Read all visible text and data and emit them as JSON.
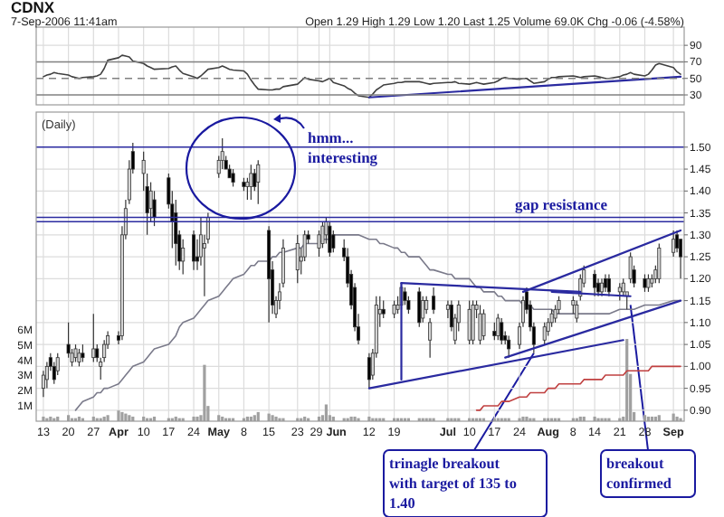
{
  "chart_data": [
    {
      "type": "line",
      "title": "CDNX",
      "subtitle": "7-Sep-2006 11:41am",
      "annotations": [
        "Open 1.29 High 1.29 Low 1.20 Last 1.25 Volume 69.0K Chg -0.06 (-4.58%)"
      ],
      "x": [
        "2006-03-13",
        "2006-03-14",
        "2006-03-15",
        "2006-03-16",
        "2006-03-17",
        "2006-03-20",
        "2006-03-21",
        "2006-03-22",
        "2006-03-23",
        "2006-03-24",
        "2006-03-27",
        "2006-03-28",
        "2006-03-29",
        "2006-03-30",
        "2006-03-31",
        "2006-04-03",
        "2006-04-04",
        "2006-04-05",
        "2006-04-06",
        "2006-04-07",
        "2006-04-10",
        "2006-04-11",
        "2006-04-12",
        "2006-04-13",
        "2006-04-17",
        "2006-04-18",
        "2006-04-19",
        "2006-04-20",
        "2006-04-21",
        "2006-04-24",
        "2006-04-25",
        "2006-04-26",
        "2006-04-27",
        "2006-04-28",
        "2006-05-01",
        "2006-05-02",
        "2006-05-03",
        "2006-05-04",
        "2006-05-05",
        "2006-05-08",
        "2006-05-09",
        "2006-05-10",
        "2006-05-11",
        "2006-05-12",
        "2006-05-15",
        "2006-05-16",
        "2006-05-17",
        "2006-05-18",
        "2006-05-19",
        "2006-05-23",
        "2006-05-24",
        "2006-05-25",
        "2006-05-26",
        "2006-05-29",
        "2006-05-30",
        "2006-05-31",
        "2006-06-01",
        "2006-06-02",
        "2006-06-05",
        "2006-06-06",
        "2006-06-07",
        "2006-06-08",
        "2006-06-09",
        "2006-06-12",
        "2006-06-13",
        "2006-06-14",
        "2006-06-15",
        "2006-06-16",
        "2006-06-19",
        "2006-06-20",
        "2006-06-21",
        "2006-06-22",
        "2006-06-23",
        "2006-06-26",
        "2006-06-27",
        "2006-06-28",
        "2006-06-29",
        "2006-06-30",
        "2006-07-04",
        "2006-07-05",
        "2006-07-06",
        "2006-07-07",
        "2006-07-10",
        "2006-07-11",
        "2006-07-12",
        "2006-07-13",
        "2006-07-14",
        "2006-07-17",
        "2006-07-18",
        "2006-07-19",
        "2006-07-20",
        "2006-07-21",
        "2006-07-24",
        "2006-07-25",
        "2006-07-26",
        "2006-07-27",
        "2006-07-28",
        "2006-07-31",
        "2006-08-01",
        "2006-08-02",
        "2006-08-03",
        "2006-08-04",
        "2006-08-08",
        "2006-08-09",
        "2006-08-10",
        "2006-08-11",
        "2006-08-14",
        "2006-08-15",
        "2006-08-16",
        "2006-08-17",
        "2006-08-18",
        "2006-08-21",
        "2006-08-22",
        "2006-08-23",
        "2006-08-24",
        "2006-08-25",
        "2006-08-28",
        "2006-08-29",
        "2006-08-30",
        "2006-08-31",
        "2006-09-01",
        "2006-09-05",
        "2006-09-06",
        "2006-09-07"
      ],
      "series": [
        {
          "color": "#404040",
          "values": [
            52,
            54,
            55,
            57,
            56,
            54,
            52,
            51,
            50,
            51,
            52,
            53,
            55,
            62,
            72,
            75,
            78,
            77,
            76,
            71,
            68,
            65,
            63,
            61,
            62,
            64,
            65,
            60,
            56,
            52,
            50,
            53,
            57,
            61,
            63,
            65,
            63,
            61,
            60,
            59,
            55,
            48,
            42,
            37,
            36,
            36,
            37,
            37,
            40,
            43,
            47,
            51,
            49,
            47,
            46,
            48,
            50,
            45,
            41,
            38,
            36,
            32,
            29,
            27,
            31,
            36,
            39,
            42,
            44,
            45,
            45,
            46,
            46,
            46,
            45,
            44,
            43,
            44,
            45,
            45,
            46,
            44,
            43,
            44,
            45,
            44,
            43,
            45,
            47,
            50,
            51,
            50,
            49,
            50,
            50,
            47,
            44,
            46,
            49,
            51,
            51,
            52,
            53,
            52,
            51,
            52,
            53,
            52,
            51,
            50,
            50,
            52,
            54,
            55,
            57,
            55,
            53,
            55,
            60,
            66,
            68,
            63,
            58,
            55
          ]
        },
        {
          "color": "#2a2aa0",
          "x": [
            "2006-06-12",
            "2006-09-07"
          ],
          "values": [
            27,
            52
          ]
        }
      ],
      "ylim": [
        18,
        112
      ],
      "yticks": [
        30,
        50,
        70,
        90
      ],
      "grid": true,
      "tick_labels": "y",
      "xlim": [
        "2006-03-11",
        "2006-09-08"
      ],
      "xticks": [
        {
          "value": "2006-03-13",
          "label": null
        },
        {
          "value": "2006-03-20",
          "label": null
        },
        {
          "value": "2006-03-27",
          "label": null
        },
        {
          "value": "2006-04-03",
          "label": null
        },
        {
          "value": "2006-04-10",
          "label": null
        },
        {
          "value": "2006-04-17",
          "label": null
        },
        {
          "value": "2006-04-24",
          "label": null
        },
        {
          "value": "2006-05-01",
          "label": null
        },
        {
          "value": "2006-05-08",
          "label": null
        },
        {
          "value": "2006-05-15",
          "label": null
        },
        {
          "value": "2006-05-23",
          "label": null
        },
        {
          "value": "2006-05-29",
          "label": null
        },
        {
          "value": "2006-06-01",
          "label": null
        },
        {
          "value": "2006-06-12",
          "label": null
        },
        {
          "value": "2006-06-19",
          "label": null
        },
        {
          "value": "2006-07-04",
          "label": null
        },
        {
          "value": "2006-07-10",
          "label": null
        },
        {
          "value": "2006-07-17",
          "label": null
        },
        {
          "value": "2006-07-24",
          "label": null
        },
        {
          "value": "2006-08-01",
          "label": null
        },
        {
          "value": "2006-08-08",
          "label": null
        },
        {
          "value": "2006-08-14",
          "label": null
        },
        {
          "value": "2006-08-21",
          "label": null
        },
        {
          "value": "2006-08-28",
          "label": null
        },
        {
          "value": "2006-09-05",
          "label": null
        }
      ],
      "ref_lines": [
        {
          "axis": "y",
          "value": 70,
          "color": "#808080",
          "line_style": "solid"
        },
        {
          "axis": "y",
          "value": 50,
          "color": "#808080",
          "line_style": "dashed"
        },
        {
          "axis": "y",
          "value": 30,
          "color": "#808080",
          "line_style": "solid"
        }
      ]
    },
    {
      "type": "candlestick",
      "x": [
        "2006-03-13",
        "2006-03-14",
        "2006-03-15",
        "2006-03-16",
        "2006-03-17",
        "2006-03-20",
        "2006-03-21",
        "2006-03-22",
        "2006-03-23",
        "2006-03-24",
        "2006-03-27",
        "2006-03-28",
        "2006-03-29",
        "2006-03-30",
        "2006-03-31",
        "2006-04-03",
        "2006-04-04",
        "2006-04-05",
        "2006-04-06",
        "2006-04-07",
        "2006-04-10",
        "2006-04-11",
        "2006-04-12",
        "2006-04-13",
        "2006-04-17",
        "2006-04-18",
        "2006-04-19",
        "2006-04-20",
        "2006-04-21",
        "2006-04-24",
        "2006-04-25",
        "2006-04-26",
        "2006-04-27",
        "2006-04-28",
        "2006-05-01",
        "2006-05-02",
        "2006-05-03",
        "2006-05-04",
        "2006-05-05",
        "2006-05-08",
        "2006-05-09",
        "2006-05-10",
        "2006-05-11",
        "2006-05-12",
        "2006-05-15",
        "2006-05-16",
        "2006-05-17",
        "2006-05-18",
        "2006-05-19",
        "2006-05-23",
        "2006-05-24",
        "2006-05-25",
        "2006-05-26",
        "2006-05-29",
        "2006-05-30",
        "2006-05-31",
        "2006-06-01",
        "2006-06-02",
        "2006-06-05",
        "2006-06-06",
        "2006-06-07",
        "2006-06-08",
        "2006-06-09",
        "2006-06-12",
        "2006-06-13",
        "2006-06-14",
        "2006-06-15",
        "2006-06-16",
        "2006-06-19",
        "2006-06-20",
        "2006-06-21",
        "2006-06-22",
        "2006-06-23",
        "2006-06-26",
        "2006-06-27",
        "2006-06-28",
        "2006-06-29",
        "2006-06-30",
        "2006-07-04",
        "2006-07-05",
        "2006-07-06",
        "2006-07-07",
        "2006-07-10",
        "2006-07-11",
        "2006-07-12",
        "2006-07-13",
        "2006-07-14",
        "2006-07-17",
        "2006-07-18",
        "2006-07-19",
        "2006-07-20",
        "2006-07-21",
        "2006-07-24",
        "2006-07-25",
        "2006-07-26",
        "2006-07-27",
        "2006-07-28",
        "2006-07-31",
        "2006-08-01",
        "2006-08-02",
        "2006-08-03",
        "2006-08-04",
        "2006-08-08",
        "2006-08-09",
        "2006-08-10",
        "2006-08-11",
        "2006-08-14",
        "2006-08-15",
        "2006-08-16",
        "2006-08-17",
        "2006-08-18",
        "2006-08-21",
        "2006-08-22",
        "2006-08-23",
        "2006-08-24",
        "2006-08-25",
        "2006-08-28",
        "2006-08-29",
        "2006-08-30",
        "2006-08-31",
        "2006-09-01",
        "2006-09-05",
        "2006-09-06",
        "2006-09-07"
      ],
      "ohlc": [
        [
          0.95,
          0.99,
          0.93,
          0.98
        ],
        [
          0.97,
          1.01,
          0.95,
          1.0
        ],
        [
          1.02,
          1.03,
          0.99,
          1.0
        ],
        [
          1.0,
          1.01,
          0.96,
          0.97
        ],
        [
          0.99,
          1.03,
          0.98,
          1.02
        ],
        [
          1.05,
          1.1,
          1.02,
          1.03
        ],
        [
          1.01,
          1.04,
          1.0,
          1.03
        ],
        [
          1.02,
          1.05,
          1.01,
          1.04
        ],
        [
          1.01,
          1.04,
          1.0,
          1.03
        ],
        [
          1.03,
          1.05,
          1.01,
          1.02
        ],
        [
          1.02,
          1.12,
          1.01,
          1.04
        ],
        [
          1.04,
          1.05,
          1.01,
          1.02
        ],
        [
          1.0,
          1.02,
          0.97,
          1.01
        ],
        [
          1.02,
          1.06,
          1.01,
          1.05
        ],
        [
          1.05,
          1.08,
          1.04,
          1.07
        ],
        [
          1.07,
          1.08,
          1.05,
          1.06
        ],
        [
          1.07,
          1.32,
          1.06,
          1.3
        ],
        [
          1.3,
          1.38,
          1.29,
          1.36
        ],
        [
          1.38,
          1.47,
          1.37,
          1.45
        ],
        [
          1.49,
          1.51,
          1.44,
          1.45
        ],
        [
          1.44,
          1.49,
          1.4,
          1.47
        ],
        [
          1.41,
          1.44,
          1.3,
          1.35
        ],
        [
          1.36,
          1.42,
          1.33,
          1.4
        ],
        [
          1.38,
          1.4,
          1.32,
          1.34
        ],
        [
          1.43,
          1.44,
          1.36,
          1.37
        ],
        [
          1.37,
          1.4,
          1.27,
          1.33
        ],
        [
          1.35,
          1.38,
          1.23,
          1.28
        ],
        [
          1.3,
          1.31,
          1.22,
          1.24
        ],
        [
          1.24,
          1.29,
          1.21,
          1.27
        ],
        [
          1.3,
          1.31,
          1.22,
          1.24
        ],
        [
          1.25,
          1.29,
          1.22,
          1.24
        ],
        [
          1.25,
          1.34,
          1.23,
          1.3
        ],
        [
          1.27,
          1.3,
          1.16,
          1.28
        ],
        [
          1.29,
          1.35,
          1.28,
          1.34
        ],
        [
          1.44,
          1.48,
          1.43,
          1.47
        ],
        [
          1.47,
          1.52,
          1.45,
          1.49
        ],
        [
          1.47,
          1.48,
          1.45,
          1.45
        ],
        [
          1.45,
          1.46,
          1.43,
          1.43
        ],
        [
          1.44,
          1.45,
          1.41,
          1.42
        ],
        [
          1.42,
          1.43,
          1.4,
          1.41
        ],
        [
          1.41,
          1.43,
          1.38,
          1.42
        ],
        [
          1.41,
          1.46,
          1.38,
          1.44
        ],
        [
          1.44,
          1.45,
          1.4,
          1.41
        ],
        [
          1.42,
          1.47,
          1.37,
          1.46
        ],
        [
          1.31,
          1.32,
          1.1,
          1.2
        ],
        [
          1.22,
          1.24,
          1.12,
          1.14
        ],
        [
          1.12,
          1.16,
          1.11,
          1.15
        ],
        [
          1.15,
          1.19,
          1.13,
          1.17
        ],
        [
          1.19,
          1.29,
          1.18,
          1.27
        ],
        [
          1.22,
          1.3,
          1.19,
          1.28
        ],
        [
          1.24,
          1.27,
          1.21,
          1.25
        ],
        [
          1.25,
          1.31,
          1.24,
          1.3
        ],
        [
          1.3,
          1.31,
          1.28,
          1.29
        ],
        [
          1.27,
          1.31,
          1.25,
          1.3
        ],
        [
          1.28,
          1.33,
          1.27,
          1.32
        ],
        [
          1.3,
          1.34,
          1.28,
          1.33
        ],
        [
          1.32,
          1.33,
          1.25,
          1.26
        ],
        [
          1.3,
          1.31,
          1.26,
          1.27
        ],
        [
          1.27,
          1.29,
          1.24,
          1.25
        ],
        [
          1.25,
          1.27,
          1.18,
          1.19
        ],
        [
          1.21,
          1.22,
          1.13,
          1.14
        ],
        [
          1.18,
          1.19,
          1.08,
          1.09
        ],
        [
          1.09,
          1.12,
          1.05,
          1.06
        ],
        [
          1.02,
          1.03,
          0.95,
          0.97
        ],
        [
          0.98,
          1.04,
          0.97,
          1.03
        ],
        [
          1.03,
          1.16,
          1.02,
          1.14
        ],
        [
          1.12,
          1.16,
          1.09,
          1.13
        ],
        [
          1.13,
          1.15,
          1.11,
          1.12
        ],
        [
          1.12,
          1.15,
          1.11,
          1.14
        ],
        [
          1.13,
          1.16,
          1.12,
          1.14
        ],
        [
          1.14,
          1.19,
          1.13,
          1.18
        ],
        [
          1.17,
          1.18,
          1.14,
          1.15
        ],
        [
          1.15,
          1.16,
          1.12,
          1.13
        ],
        [
          1.17,
          1.18,
          1.09,
          1.1
        ],
        [
          1.11,
          1.16,
          1.1,
          1.15
        ],
        [
          1.13,
          1.16,
          1.12,
          1.15
        ],
        [
          1.06,
          1.11,
          1.02,
          1.1
        ],
        [
          1.16,
          1.18,
          1.12,
          1.13
        ],
        [
          1.13,
          1.15,
          1.11,
          1.14
        ],
        [
          1.14,
          1.15,
          1.08,
          1.09
        ],
        [
          1.06,
          1.12,
          1.05,
          1.11
        ],
        [
          1.1,
          1.15,
          1.08,
          1.14
        ],
        [
          1.06,
          1.15,
          1.05,
          1.13
        ],
        [
          1.06,
          1.15,
          1.05,
          1.14
        ],
        [
          1.13,
          1.15,
          1.11,
          1.14
        ],
        [
          1.06,
          1.14,
          1.05,
          1.12
        ],
        [
          1.07,
          1.13,
          1.06,
          1.12
        ],
        [
          1.08,
          1.1,
          1.06,
          1.07
        ],
        [
          1.07,
          1.12,
          1.06,
          1.11
        ],
        [
          1.1,
          1.11,
          1.05,
          1.06
        ],
        [
          1.07,
          1.08,
          1.05,
          1.06
        ],
        [
          1.06,
          1.07,
          1.02,
          1.04
        ],
        [
          1.05,
          1.1,
          1.04,
          1.09
        ],
        [
          1.1,
          1.16,
          1.09,
          1.15
        ],
        [
          1.17,
          1.18,
          1.12,
          1.13
        ],
        [
          1.14,
          1.15,
          1.08,
          1.09
        ],
        [
          1.09,
          1.1,
          1.03,
          1.05
        ],
        [
          1.06,
          1.1,
          1.05,
          1.09
        ],
        [
          1.08,
          1.11,
          1.07,
          1.1
        ],
        [
          1.1,
          1.13,
          1.09,
          1.12
        ],
        [
          1.11,
          1.14,
          1.1,
          1.13
        ],
        [
          1.13,
          1.16,
          1.12,
          1.15
        ],
        [
          1.14,
          1.16,
          1.12,
          1.15
        ],
        [
          1.11,
          1.15,
          1.1,
          1.14
        ],
        [
          1.16,
          1.21,
          1.15,
          1.2
        ],
        [
          1.19,
          1.23,
          1.18,
          1.22
        ],
        [
          1.21,
          1.22,
          1.16,
          1.18
        ],
        [
          1.19,
          1.2,
          1.16,
          1.17
        ],
        [
          1.17,
          1.2,
          1.16,
          1.19
        ],
        [
          1.2,
          1.21,
          1.17,
          1.18
        ],
        [
          1.2,
          1.21,
          1.16,
          1.17
        ],
        [
          1.17,
          1.19,
          1.15,
          1.18
        ],
        [
          1.17,
          1.2,
          1.16,
          1.19
        ],
        [
          1.16,
          1.17,
          1.13,
          1.17
        ],
        [
          1.2,
          1.26,
          1.19,
          1.25
        ],
        [
          1.22,
          1.23,
          1.18,
          1.19
        ],
        [
          1.2,
          1.21,
          1.17,
          1.18
        ],
        [
          1.18,
          1.21,
          1.17,
          1.2
        ],
        [
          1.19,
          1.21,
          1.18,
          1.2
        ],
        [
          1.2,
          1.23,
          1.19,
          1.22
        ],
        [
          1.2,
          1.28,
          1.19,
          1.27
        ],
        [
          1.26,
          1.31,
          1.25,
          1.29
        ],
        [
          1.3,
          1.31,
          1.26,
          1.27
        ],
        [
          1.29,
          1.29,
          1.2,
          1.25
        ]
      ],
      "series": [
        {
          "type": "line",
          "color": "#7a7a8a",
          "values": [
            null,
            null,
            null,
            null,
            null,
            null,
            null,
            0.9,
            0.91,
            0.92,
            0.93,
            0.94,
            0.94,
            0.95,
            0.95,
            0.96,
            0.97,
            0.98,
            0.99,
            1.0,
            1.01,
            1.02,
            1.03,
            1.04,
            1.05,
            1.06,
            1.07,
            1.09,
            1.1,
            1.11,
            1.12,
            1.13,
            1.14,
            1.15,
            1.16,
            1.17,
            1.18,
            1.19,
            1.2,
            1.21,
            1.22,
            1.23,
            1.23,
            1.24,
            1.24,
            1.25,
            1.25,
            1.26,
            1.26,
            1.27,
            1.27,
            1.28,
            1.28,
            1.28,
            1.29,
            1.29,
            1.29,
            1.3,
            1.3,
            1.3,
            1.3,
            1.3,
            1.3,
            1.29,
            1.29,
            1.29,
            1.28,
            1.28,
            1.27,
            1.27,
            1.26,
            1.26,
            1.25,
            1.25,
            1.24,
            1.23,
            1.22,
            1.22,
            1.21,
            1.21,
            1.2,
            1.2,
            1.2,
            1.19,
            1.18,
            1.18,
            1.17,
            1.17,
            1.16,
            1.16,
            1.15,
            1.15,
            1.15,
            1.14,
            1.14,
            1.14,
            1.13,
            1.13,
            1.13,
            1.13,
            1.12,
            1.12,
            1.12,
            1.12,
            1.12,
            1.12,
            1.12,
            1.12,
            1.12,
            1.12,
            1.12,
            1.13,
            1.13,
            1.13,
            1.13,
            1.13,
            1.14,
            1.14,
            1.14,
            1.14,
            1.14,
            1.15,
            1.15,
            1.15
          ]
        },
        {
          "type": "line",
          "color": "#c04040",
          "values": [
            null,
            null,
            null,
            null,
            null,
            null,
            null,
            null,
            null,
            null,
            null,
            null,
            null,
            null,
            null,
            null,
            null,
            null,
            null,
            null,
            null,
            null,
            null,
            null,
            null,
            null,
            null,
            null,
            null,
            null,
            null,
            null,
            null,
            null,
            null,
            null,
            null,
            null,
            null,
            null,
            null,
            null,
            null,
            null,
            null,
            null,
            null,
            null,
            null,
            null,
            null,
            null,
            null,
            null,
            null,
            null,
            null,
            null,
            null,
            null,
            null,
            null,
            null,
            null,
            null,
            null,
            null,
            null,
            null,
            null,
            null,
            null,
            null,
            null,
            null,
            null,
            null,
            null,
            null,
            null,
            null,
            null,
            null,
            null,
            0.9,
            0.9,
            0.91,
            0.91,
            0.91,
            0.92,
            0.92,
            0.92,
            0.93,
            0.93,
            0.93,
            0.94,
            0.94,
            0.94,
            0.95,
            0.95,
            0.95,
            0.96,
            0.96,
            0.96,
            0.96,
            0.97,
            0.97,
            0.97,
            0.97,
            0.98,
            0.98,
            0.98,
            0.98,
            0.99,
            0.99,
            0.99,
            0.99,
            0.99,
            1.0,
            1.0,
            1.0,
            1.0,
            1.0,
            1.0
          ]
        },
        {
          "type": "bar",
          "axis": "y2",
          "color": "#a0a0a0",
          "values": [
            0.3,
            0.2,
            0.3,
            0.2,
            0.3,
            0.4,
            0.2,
            0.2,
            0.3,
            0.2,
            0.3,
            0.2,
            0.2,
            0.3,
            0.4,
            0.7,
            0.6,
            0.5,
            0.4,
            0.3,
            0.3,
            0.2,
            0.2,
            0.3,
            0.2,
            0.2,
            0.3,
            0.2,
            0.2,
            0.3,
            0.3,
            0.4,
            3.7,
            1.0,
            0.4,
            0.3,
            0.2,
            0.2,
            0.2,
            0.2,
            0.3,
            0.3,
            0.4,
            0.6,
            0.5,
            0.4,
            0.3,
            0.2,
            0.2,
            0.2,
            0.2,
            0.3,
            0.2,
            0.3,
            0.4,
            1.1,
            0.4,
            0.3,
            0.2,
            0.2,
            0.3,
            0.3,
            0.2,
            0.3,
            0.2,
            0.2,
            0.2,
            0.2,
            0.2,
            0.2,
            0.2,
            0.2,
            0.2,
            0.2,
            0.2,
            0.2,
            0.2,
            0.2,
            0.2,
            0.2,
            0.2,
            0.2,
            0.2,
            0.2,
            0.2,
            0.2,
            0.2,
            0.2,
            0.2,
            0.2,
            0.2,
            0.2,
            0.2,
            0.3,
            0.3,
            0.2,
            0.2,
            0.2,
            0.2,
            0.2,
            0.2,
            0.2,
            0.2,
            0.2,
            0.3,
            0.3,
            0.3,
            0.2,
            0.2,
            0.2,
            0.2,
            0.2,
            0.3,
            5.4,
            3.1,
            0.6,
            0.4,
            0.3,
            0.3,
            0.3,
            0.4,
            0.5,
            0.3,
            0.2
          ]
        },
        {
          "type": "line",
          "color": "#2a2aa0",
          "x": [
            "2006-06-12",
            "2006-08-22"
          ],
          "values": [
            0.95,
            1.06
          ]
        },
        {
          "type": "line",
          "color": "#2a2aa0",
          "x": [
            "2006-06-21",
            "2006-08-10"
          ],
          "values": [
            1.19,
            1.17
          ]
        },
        {
          "type": "line",
          "color": "#2a2aa0",
          "x": [
            "2006-06-21",
            "2006-06-21"
          ],
          "values": [
            0.97,
            1.19
          ]
        },
        {
          "type": "line",
          "color": "#2a2aa0",
          "x": [
            "2006-07-20",
            "2006-09-07"
          ],
          "values": [
            1.02,
            1.15
          ]
        },
        {
          "type": "line",
          "color": "#2a2aa0",
          "x": [
            "2006-07-25",
            "2006-09-07"
          ],
          "values": [
            1.17,
            1.31
          ]
        },
        {
          "type": "line",
          "color": "#2a2aa0",
          "x": [
            "2006-08-02",
            "2006-08-24"
          ],
          "values": [
            1.17,
            1.16
          ]
        }
      ],
      "ylim": [
        0.875,
        1.58
      ],
      "yticks": [
        {
          "value": 0.9,
          "label": "0.90"
        },
        {
          "value": 0.95,
          "label": "0.95"
        },
        {
          "value": 1.0,
          "label": "1.00"
        },
        {
          "value": 1.05,
          "label": "1.05"
        },
        {
          "value": 1.1,
          "label": "1.10"
        },
        {
          "value": 1.15,
          "label": "1.15"
        },
        {
          "value": 1.2,
          "label": "1.20"
        },
        {
          "value": 1.25,
          "label": "1.25"
        },
        {
          "value": 1.3,
          "label": "1.30"
        },
        {
          "value": 1.35,
          "label": "1.35"
        },
        {
          "value": 1.4,
          "label": "1.40"
        },
        {
          "value": 1.45,
          "label": "1.45"
        },
        {
          "value": 1.5,
          "label": "1.50"
        }
      ],
      "y2lim": [
        0,
        20.3
      ],
      "xlim": [
        "2006-03-11",
        "2006-09-08"
      ],
      "y2ticks": [
        {
          "value": 1,
          "label": "1M"
        },
        {
          "value": 2,
          "label": "2M"
        },
        {
          "value": 3,
          "label": "3M"
        },
        {
          "value": 4,
          "label": "4M"
        },
        {
          "value": 5,
          "label": "5M"
        },
        {
          "value": 6,
          "label": "6M"
        }
      ],
      "xticks": [
        {
          "value": "2006-03-13",
          "label": "13"
        },
        {
          "value": "2006-03-20",
          "label": "20"
        },
        {
          "value": "2006-03-27",
          "label": "27"
        },
        {
          "value": "2006-04-03",
          "label": "Apr"
        },
        {
          "value": "2006-04-10",
          "label": "10"
        },
        {
          "value": "2006-04-17",
          "label": "17"
        },
        {
          "value": "2006-04-24",
          "label": "24"
        },
        {
          "value": "2006-05-01",
          "label": "May"
        },
        {
          "value": "2006-05-08",
          "label": "8"
        },
        {
          "value": "2006-05-15",
          "label": "15"
        },
        {
          "value": "2006-05-23",
          "label": "23"
        },
        {
          "value": "2006-05-29",
          "label": "29"
        },
        {
          "value": "2006-06-01",
          "label": "Jun"
        },
        {
          "value": "2006-06-12",
          "label": "12"
        },
        {
          "value": "2006-06-19",
          "label": "19"
        },
        {
          "value": "2006-07-04",
          "label": "Jul"
        },
        {
          "value": "2006-07-10",
          "label": "10"
        },
        {
          "value": "2006-07-17",
          "label": "17"
        },
        {
          "value": "2006-07-24",
          "label": "24"
        },
        {
          "value": "2006-08-01",
          "label": "Aug"
        },
        {
          "value": "2006-08-08",
          "label": "8"
        },
        {
          "value": "2006-08-14",
          "label": "14"
        },
        {
          "value": "2006-08-21",
          "label": "21"
        },
        {
          "value": "2006-08-28",
          "label": "28"
        },
        {
          "value": "2006-09-05",
          "label": "Sep"
        }
      ],
      "grid": true,
      "ref_lines": [
        {
          "axis": "y",
          "value": 1.5,
          "color": "#2a2aa0"
        },
        {
          "axis": "y",
          "value": 1.34,
          "color": "#2a2aa0",
          "label": "gap resistance"
        },
        {
          "axis": "y",
          "value": 1.33,
          "color": "#2a2aa0"
        }
      ],
      "annotations": [
        "(Daily)",
        "hmm... interesting",
        {
          "text": "trinagle breakout with target of 135 to 1.40",
          "x": "2006-07-28",
          "y": 1.03
        },
        {
          "text": "breakout confirmed",
          "x": "2006-08-24",
          "y": 1.14
        }
      ]
    }
  ]
}
